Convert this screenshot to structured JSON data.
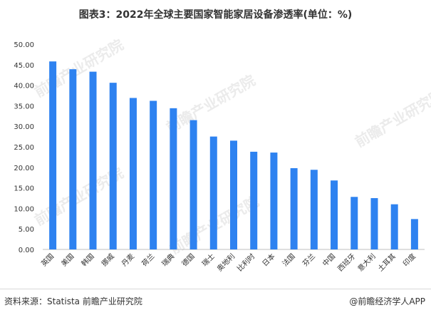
{
  "title": "图表3：2022年全球主要国家智能家居设备渗透率(单位：%)",
  "source": "资料来源：Statista 前瞻产业研究院",
  "brand": "@前瞻经济学人APP",
  "watermark": "前瞻产业研究院",
  "chart_data": {
    "type": "bar",
    "title": "图表3：2022年全球主要国家智能家居设备渗透率(单位：%)",
    "xlabel": "",
    "ylabel": "",
    "categories": [
      "英国",
      "美国",
      "韩国",
      "挪威",
      "丹麦",
      "荷兰",
      "瑞典",
      "德国",
      "瑞士",
      "奥地利",
      "比利时",
      "日本",
      "法国",
      "芬兰",
      "中国",
      "西班牙",
      "意大利",
      "土耳其",
      "印度"
    ],
    "values": [
      45.8,
      43.9,
      43.3,
      40.6,
      36.9,
      36.2,
      34.4,
      31.5,
      27.5,
      26.5,
      23.8,
      23.6,
      19.8,
      19.4,
      16.8,
      12.8,
      12.5,
      11.0,
      7.4
    ],
    "yticks": [
      "0.00",
      "5.00",
      "10.00",
      "15.00",
      "20.00",
      "25.00",
      "30.00",
      "35.00",
      "40.00",
      "45.00",
      "50.00"
    ],
    "ylim": [
      0,
      50
    ],
    "grid": false,
    "legend": "none",
    "bar_color": "#2e82f0"
  }
}
